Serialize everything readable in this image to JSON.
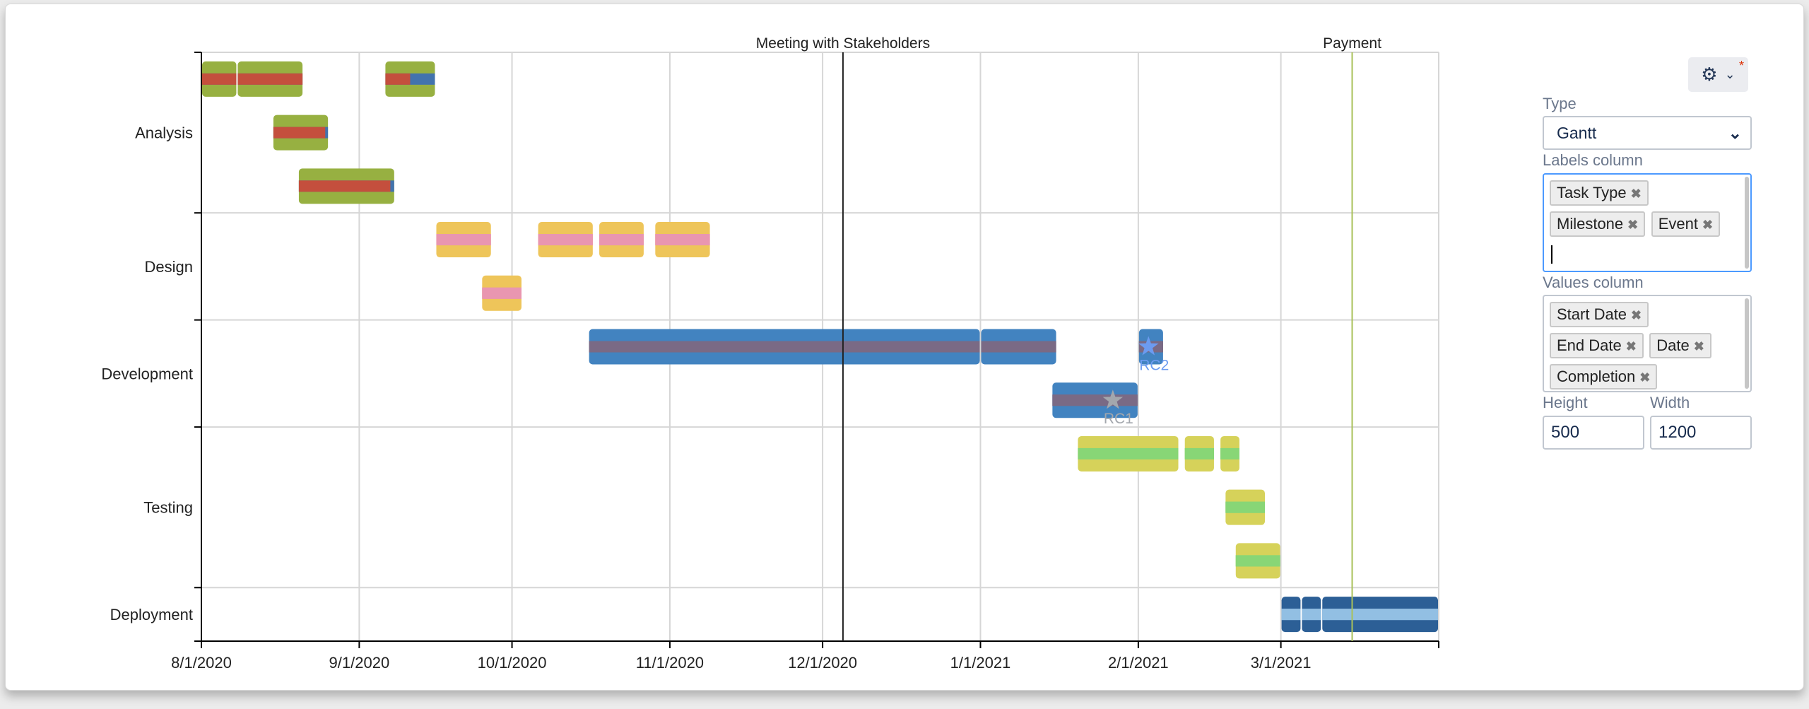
{
  "panel": {
    "settings_icon": "gear-icon",
    "type_label": "Type",
    "type_value": "Gantt",
    "labels_column_label": "Labels column",
    "labels_tags": [
      "Task Type",
      "Milestone",
      "Event"
    ],
    "values_column_label": "Values column",
    "values_tags": [
      "Start Date",
      "End Date",
      "Date",
      "Completion"
    ],
    "height_label": "Height",
    "height_value": "500",
    "width_label": "Width",
    "width_value": "1200",
    "remove_symbol": "✖"
  },
  "chart_data": {
    "type": "bar",
    "orientation": "horizontal",
    "xlim": [
      "2020-08-01",
      "2021-04-01"
    ],
    "x_ticks": [
      "8/1/2020",
      "9/1/2020",
      "10/1/2020",
      "11/1/2020",
      "12/1/2020",
      "1/1/2021",
      "2/1/2021",
      "3/1/2021"
    ],
    "x_tick_dates": [
      "2020-08-01",
      "2020-09-01",
      "2020-10-01",
      "2020-11-01",
      "2020-12-01",
      "2021-01-01",
      "2021-02-01",
      "2021-03-01"
    ],
    "grid": true,
    "categories": [
      {
        "label": "Analysis",
        "colors": {
          "bar": "#97b041",
          "done": "#c44f3d",
          "remaining": "#4273ad"
        },
        "rows": [
          [
            [
              "2020-08-01",
              "2020-08-08",
              1
            ],
            [
              "2020-08-08",
              "2020-08-21",
              1
            ],
            [
              "2020-09-06",
              "2020-09-16",
              0.5
            ]
          ],
          [
            [
              "2020-08-15",
              "2020-08-26",
              0.95
            ]
          ],
          [
            [
              "2020-08-20",
              "2020-09-08",
              0.96
            ]
          ]
        ]
      },
      {
        "label": "Design",
        "colors": {
          "bar": "#eec55a",
          "done": "#e996b0",
          "remaining": "#e996b0"
        },
        "rows": [
          [
            [
              "2020-09-16",
              "2020-09-27",
              1
            ],
            [
              "2020-10-06",
              "2020-10-17",
              1
            ],
            [
              "2020-10-18",
              "2020-10-27",
              1
            ],
            [
              "2020-10-29",
              "2020-11-09",
              1
            ]
          ],
          [
            [
              "2020-09-25",
              "2020-10-03",
              1
            ]
          ]
        ]
      },
      {
        "label": "Development",
        "colors": {
          "bar": "#4283c0",
          "done": "#7a6a85",
          "remaining": "#7a6a85"
        },
        "rows": [
          [
            [
              "2020-10-16",
              "2021-01-01",
              1
            ],
            [
              "2021-01-01",
              "2021-01-16",
              1
            ],
            [
              "2021-02-01",
              "2021-02-06",
              1
            ]
          ],
          [
            [
              "2021-01-15",
              "2021-02-01",
              1
            ]
          ]
        ]
      },
      {
        "label": "Testing",
        "colors": {
          "bar": "#d6d25a",
          "done": "#88d676",
          "remaining": "#88d676"
        },
        "rows": [
          [
            [
              "2021-01-20",
              "2021-02-09",
              1
            ],
            [
              "2021-02-10",
              "2021-02-16",
              1
            ],
            [
              "2021-02-17",
              "2021-02-21",
              1
            ]
          ],
          [
            [
              "2021-02-18",
              "2021-02-26",
              1
            ]
          ],
          [
            [
              "2021-02-20",
              "2021-03-01",
              1
            ]
          ]
        ]
      },
      {
        "label": "Deployment",
        "colors": {
          "bar": "#2c5f96",
          "done": "#92bfe3",
          "remaining": "#92bfe3"
        },
        "rows": [
          [
            [
              "2021-03-01",
              "2021-03-05",
              1
            ],
            [
              "2021-03-05",
              "2021-03-09",
              1
            ],
            [
              "2021-03-09",
              "2021-04-01",
              1
            ]
          ]
        ]
      }
    ],
    "milestones": [
      {
        "label": "RC2",
        "date": "2021-02-03",
        "category": 2,
        "row": 0,
        "color": "#6c9bf0"
      },
      {
        "label": "RC1",
        "date": "2021-01-27",
        "category": 2,
        "row": 1,
        "color": "#a3a7ad"
      }
    ],
    "events": [
      {
        "label": "Meeting with Stakeholders",
        "date": "2020-12-05",
        "color": "#222222"
      },
      {
        "label": "Payment",
        "date": "2021-03-15",
        "color": "#a9c15a"
      }
    ]
  }
}
